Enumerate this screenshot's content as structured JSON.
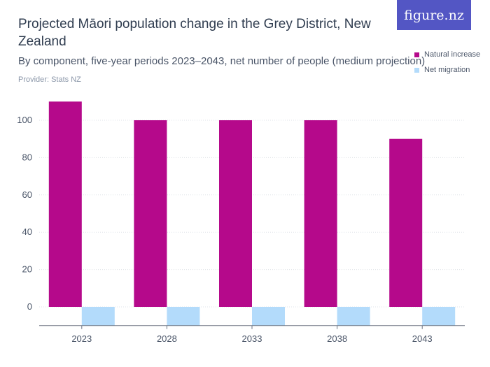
{
  "header": {
    "title": "Projected Māori population change in the Grey District, New Zealand",
    "subtitle": "By component, five-year periods 2023–2043, net number of people (medium projection)",
    "provider": "Provider: Stats NZ",
    "logo": "figure.nz"
  },
  "colors": {
    "natural_increase": "#b5098b",
    "net_migration": "#b3dbfb",
    "grid": "#dfe3e8",
    "axis": "#6b7280"
  },
  "chart_data": {
    "type": "bar",
    "categories": [
      "2023",
      "2028",
      "2033",
      "2038",
      "2043"
    ],
    "series": [
      {
        "name": "Natural increase",
        "values": [
          110,
          100,
          100,
          100,
          90
        ]
      },
      {
        "name": "Net migration",
        "values": [
          -10,
          -10,
          -10,
          -10,
          -10
        ]
      }
    ],
    "ylim": [
      -10,
      115
    ],
    "yticks": [
      0,
      20,
      40,
      60,
      80,
      100
    ],
    "grid": true,
    "legend_position": "top-right"
  }
}
